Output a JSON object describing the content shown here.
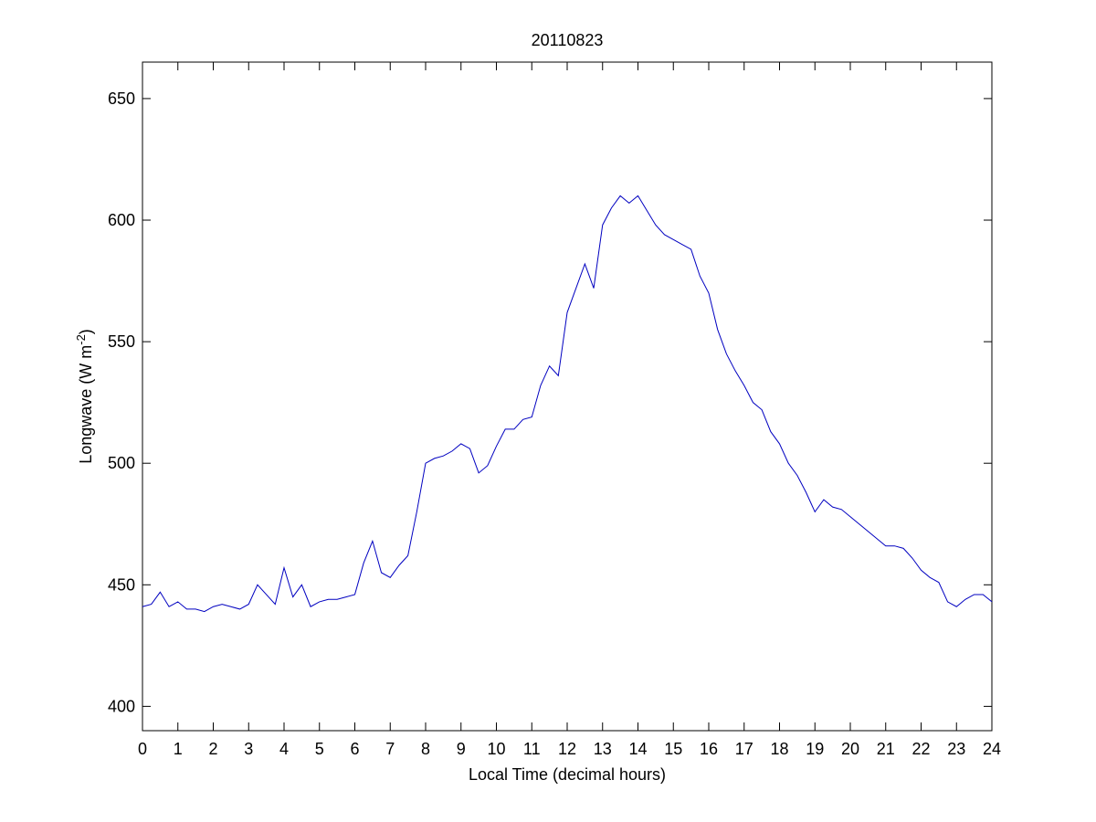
{
  "chart_data": {
    "type": "line",
    "title": "20110823",
    "xlabel": "Local Time (decimal hours)",
    "ylabel": {
      "text": "Longwave (W m",
      "superscript": "-2",
      "close": ")"
    },
    "xlim": [
      0,
      24
    ],
    "xticks": [
      0,
      1,
      2,
      3,
      4,
      5,
      6,
      7,
      8,
      9,
      10,
      11,
      12,
      13,
      14,
      15,
      16,
      17,
      18,
      19,
      20,
      21,
      22,
      23,
      24
    ],
    "ylim": [
      390,
      665
    ],
    "yticks": [
      400,
      450,
      500,
      550,
      600,
      650
    ],
    "x": [
      0,
      0.25,
      0.5,
      0.75,
      1,
      1.25,
      1.5,
      1.75,
      2,
      2.25,
      2.5,
      2.75,
      3,
      3.25,
      3.5,
      3.75,
      4,
      4.25,
      4.5,
      4.75,
      5,
      5.25,
      5.5,
      5.75,
      6,
      6.25,
      6.5,
      6.75,
      7,
      7.25,
      7.5,
      7.75,
      8,
      8.25,
      8.5,
      8.75,
      9,
      9.25,
      9.5,
      9.75,
      10,
      10.25,
      10.5,
      10.75,
      11,
      11.25,
      11.5,
      11.75,
      12,
      12.25,
      12.5,
      12.75,
      13,
      13.25,
      13.5,
      13.75,
      14,
      14.25,
      14.5,
      14.75,
      15,
      15.25,
      15.5,
      15.75,
      16,
      16.25,
      16.5,
      16.75,
      17,
      17.25,
      17.5,
      17.75,
      18,
      18.25,
      18.5,
      18.75,
      19,
      19.25,
      19.5,
      19.75,
      20,
      20.25,
      20.5,
      20.75,
      21,
      21.25,
      21.5,
      21.75,
      22,
      22.25,
      22.5,
      22.75,
      23,
      23.25,
      23.5,
      23.75,
      24
    ],
    "series": [
      {
        "color": "#0000c0",
        "values": [
          441,
          442,
          447,
          441,
          443,
          440,
          440,
          439,
          441,
          442,
          441,
          440,
          442,
          450,
          446,
          442,
          457,
          445,
          450,
          441,
          443,
          444,
          444,
          445,
          446,
          459,
          468,
          455,
          453,
          458,
          462,
          480,
          500,
          502,
          503,
          505,
          508,
          506,
          496,
          499,
          507,
          514,
          514,
          518,
          519,
          532,
          540,
          536,
          562,
          572,
          582,
          572,
          598,
          605,
          610,
          607,
          610,
          604,
          598,
          594,
          592,
          590,
          588,
          577,
          570,
          555,
          545,
          538,
          532,
          525,
          522,
          513,
          508,
          500,
          495,
          488,
          480,
          485,
          482,
          481,
          478,
          475,
          472,
          469,
          466,
          466,
          465,
          461,
          456,
          453,
          451,
          443,
          441,
          444,
          446,
          446,
          443
        ]
      }
    ]
  }
}
